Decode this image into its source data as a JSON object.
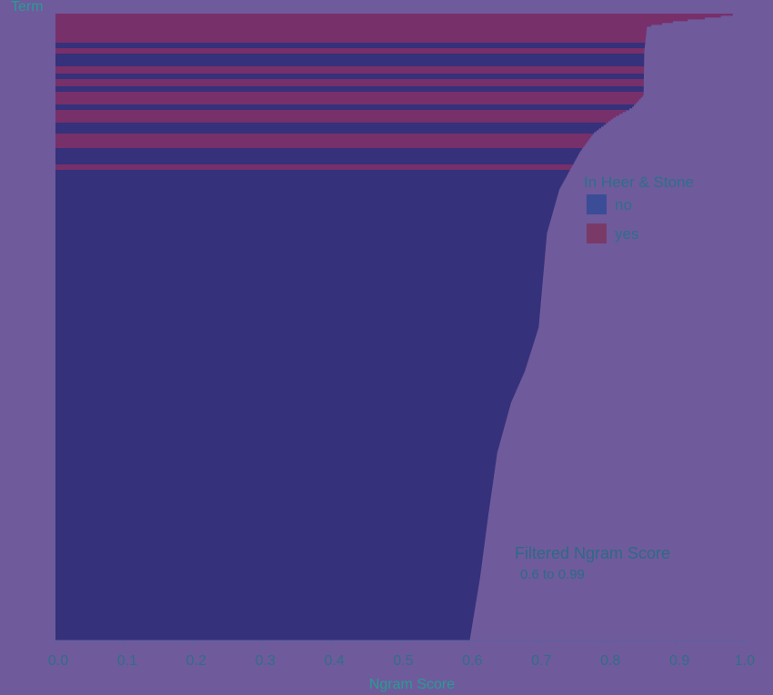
{
  "chart_data": {
    "type": "bar",
    "orientation": "horizontal",
    "y_axis_title": "Term",
    "x_axis_title": "Ngram Score",
    "xlim": [
      0.0,
      1.0
    ],
    "x_ticks": [
      "0.0",
      "0.1",
      "0.2",
      "0.3",
      "0.4",
      "0.5",
      "0.6",
      "0.7",
      "0.8",
      "0.9",
      "1.0"
    ],
    "legend": {
      "title": "In Heer & Stone",
      "position": "right",
      "items": [
        {
          "label": "no",
          "color": "#35317a"
        },
        {
          "label": "yes",
          "color": "#77306a"
        }
      ]
    },
    "filter": {
      "title": "Filtered Ngram Score",
      "range": "0.6 to 0.99",
      "min": 0.6,
      "max": 0.99
    },
    "profile": [
      {
        "rank": 0.0,
        "score": 0.99
      },
      {
        "rank": 0.005,
        "score": 0.96
      },
      {
        "rank": 0.012,
        "score": 0.9
      },
      {
        "rank": 0.02,
        "score": 0.857
      },
      {
        "rank": 0.06,
        "score": 0.853
      },
      {
        "rank": 0.13,
        "score": 0.852
      },
      {
        "rank": 0.15,
        "score": 0.835
      },
      {
        "rank": 0.165,
        "score": 0.81
      },
      {
        "rank": 0.19,
        "score": 0.78
      },
      {
        "rank": 0.22,
        "score": 0.76
      },
      {
        "rank": 0.28,
        "score": 0.73
      },
      {
        "rank": 0.35,
        "score": 0.712
      },
      {
        "rank": 0.5,
        "score": 0.7
      },
      {
        "rank": 0.57,
        "score": 0.68
      },
      {
        "rank": 0.62,
        "score": 0.66
      },
      {
        "rank": 0.7,
        "score": 0.64
      },
      {
        "rank": 0.8,
        "score": 0.627
      },
      {
        "rank": 0.9,
        "score": 0.615
      },
      {
        "rank": 1.0,
        "score": 0.6
      }
    ],
    "yes_bands": [
      [
        0.0,
        0.045
      ],
      [
        0.055,
        0.065
      ],
      [
        0.085,
        0.095
      ],
      [
        0.105,
        0.115
      ],
      [
        0.125,
        0.145
      ],
      [
        0.155,
        0.175
      ],
      [
        0.19,
        0.215
      ],
      [
        0.24,
        0.25
      ]
    ]
  }
}
